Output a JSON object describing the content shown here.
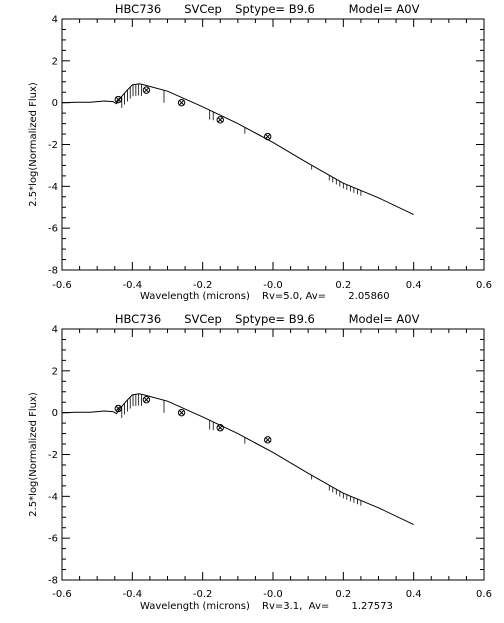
{
  "chart_data": [
    {
      "type": "line",
      "title_parts": [
        "HBC736",
        "SVCep",
        "Sptype= B9.6",
        "Model=  A0V"
      ],
      "xlabel": "Wavelength (microns)",
      "x_suffix": "Rv=5.0, Av=       2.05860",
      "ylabel": "2.5*log(Normalized Flux)",
      "xlim": [
        -0.6,
        0.6
      ],
      "ylim": [
        -8,
        4
      ],
      "x_ticks": [
        "-0.6",
        "-0.4",
        "-0.2",
        "-0.0",
        "0.2",
        "0.4",
        "0.6"
      ],
      "y_ticks": [
        "4",
        "2",
        "0",
        "-2",
        "-4",
        "-6",
        "-8"
      ],
      "model_points": [
        [
          -0.6,
          0.0
        ],
        [
          -0.56,
          0.02
        ],
        [
          -0.52,
          0.02
        ],
        [
          -0.48,
          0.08
        ],
        [
          -0.455,
          0.05
        ],
        [
          -0.445,
          -0.05
        ],
        [
          -0.44,
          0.1
        ],
        [
          -0.42,
          0.5
        ],
        [
          -0.4,
          0.85
        ],
        [
          -0.38,
          0.9
        ],
        [
          -0.36,
          0.82
        ],
        [
          -0.3,
          0.55
        ],
        [
          -0.2,
          -0.2
        ],
        [
          -0.1,
          -1.0
        ],
        [
          0.0,
          -1.9
        ],
        [
          0.1,
          -2.9
        ],
        [
          0.2,
          -3.85
        ],
        [
          0.3,
          -4.55
        ],
        [
          0.4,
          -5.35
        ]
      ],
      "observed_points": [
        [
          -0.44,
          0.15
        ],
        [
          -0.36,
          0.6
        ],
        [
          -0.26,
          0.0
        ],
        [
          -0.15,
          -0.82
        ],
        [
          -0.015,
          -1.62
        ]
      ]
    },
    {
      "type": "line",
      "title_parts": [
        "HBC736",
        "SVCep",
        "Sptype= B9.6",
        "Model=  A0V"
      ],
      "xlabel": "Wavelength (microns)",
      "x_suffix": "Rv=3.1,  Av=       1.27573",
      "ylabel": "2.5*log(Normalized Flux)",
      "xlim": [
        -0.6,
        0.6
      ],
      "ylim": [
        -8,
        4
      ],
      "x_ticks": [
        "-0.6",
        "-0.4",
        "-0.2",
        "-0.0",
        "0.2",
        "0.4",
        "0.6"
      ],
      "y_ticks": [
        "4",
        "2",
        "0",
        "-2",
        "-4",
        "-6",
        "-8"
      ],
      "model_points": [
        [
          -0.6,
          0.0
        ],
        [
          -0.56,
          0.02
        ],
        [
          -0.52,
          0.02
        ],
        [
          -0.48,
          0.08
        ],
        [
          -0.455,
          0.05
        ],
        [
          -0.445,
          -0.05
        ],
        [
          -0.44,
          0.1
        ],
        [
          -0.42,
          0.5
        ],
        [
          -0.4,
          0.85
        ],
        [
          -0.38,
          0.9
        ],
        [
          -0.36,
          0.82
        ],
        [
          -0.3,
          0.55
        ],
        [
          -0.2,
          -0.2
        ],
        [
          -0.1,
          -1.0
        ],
        [
          0.0,
          -1.9
        ],
        [
          0.1,
          -2.9
        ],
        [
          0.2,
          -3.85
        ],
        [
          0.3,
          -4.55
        ],
        [
          0.4,
          -5.35
        ]
      ],
      "observed_points": [
        [
          -0.44,
          0.2
        ],
        [
          -0.36,
          0.62
        ],
        [
          -0.26,
          0.0
        ],
        [
          -0.15,
          -0.72
        ],
        [
          -0.015,
          -1.3
        ]
      ]
    }
  ]
}
